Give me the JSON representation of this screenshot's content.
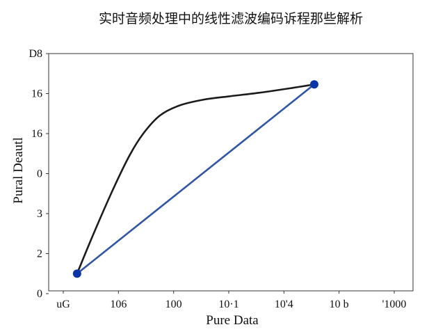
{
  "chart_data": {
    "type": "line",
    "title": "实时音频处理中的线性滤波编码诉程那些解析",
    "xlabel": "Pure Data",
    "ylabel": "Pural Deautl",
    "x_tick_labels": [
      "uG",
      "106",
      "100",
      "10·1",
      "10'4",
      "10 b",
      "'1000"
    ],
    "y_tick_labels": [
      "0",
      "2",
      "3",
      "0",
      "16",
      "16",
      "D8"
    ],
    "series": [
      {
        "color": "#1b1b1b",
        "points": [
          {
            "x": 0.25,
            "y": 0.5
          },
          {
            "x": 0.55,
            "y": 1.5
          },
          {
            "x": 0.9,
            "y": 2.6
          },
          {
            "x": 1.2,
            "y": 3.45
          },
          {
            "x": 1.45,
            "y": 4.0
          },
          {
            "x": 1.75,
            "y": 4.45
          },
          {
            "x": 2.1,
            "y": 4.7
          },
          {
            "x": 2.55,
            "y": 4.85
          },
          {
            "x": 3.0,
            "y": 4.93
          },
          {
            "x": 3.55,
            "y": 5.02
          },
          {
            "x": 4.1,
            "y": 5.13
          },
          {
            "x": 4.55,
            "y": 5.23
          }
        ]
      },
      {
        "color": "#2f55a4",
        "points": [
          {
            "x": 0.25,
            "y": 0.5
          },
          {
            "x": 4.55,
            "y": 5.23
          }
        ]
      }
    ],
    "markers": [
      {
        "x": 0.25,
        "y": 0.5,
        "color": "#0b35a6"
      },
      {
        "x": 4.55,
        "y": 5.23,
        "color": "#0b35a6"
      }
    ],
    "ylim": [
      0,
      6
    ],
    "xlim": [
      0,
      6
    ]
  }
}
